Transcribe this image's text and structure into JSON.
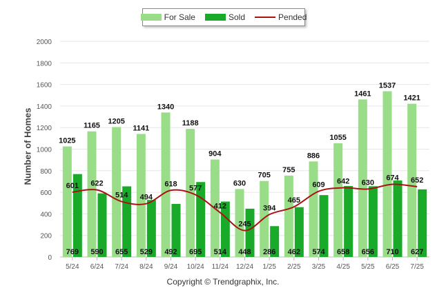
{
  "chart_data": {
    "type": "bar",
    "title": "",
    "xlabel": "",
    "ylabel": "Number of Homes",
    "ylim": [
      0,
      2000
    ],
    "yticks": [
      0,
      200,
      400,
      600,
      800,
      1000,
      1200,
      1400,
      1600,
      1800,
      2000
    ],
    "grid": true,
    "legend_position": "top-center",
    "categories": [
      "5/24",
      "6/24",
      "7/24",
      "8/24",
      "9/24",
      "10/24",
      "11/24",
      "12/24",
      "1/25",
      "2/25",
      "3/25",
      "4/25",
      "5/25",
      "6/25",
      "7/25"
    ],
    "series": [
      {
        "name": "For Sale",
        "type": "bar",
        "color": "#99dd88",
        "values": [
          1025,
          1165,
          1205,
          1141,
          1340,
          1188,
          904,
          630,
          705,
          755,
          886,
          1055,
          1461,
          1537,
          1421
        ]
      },
      {
        "name": "Sold",
        "type": "bar",
        "color": "#1aaa2a",
        "values": [
          769,
          590,
          655,
          529,
          492,
          695,
          514,
          448,
          286,
          462,
          574,
          658,
          656,
          710,
          627
        ]
      },
      {
        "name": "Pended",
        "type": "line",
        "color": "#aa1111",
        "values": [
          601,
          622,
          514,
          494,
          618,
          577,
          412,
          245,
          394,
          465,
          609,
          642,
          630,
          674,
          652
        ]
      }
    ]
  },
  "copyright": "Copyright © Trendgraphix, Inc."
}
